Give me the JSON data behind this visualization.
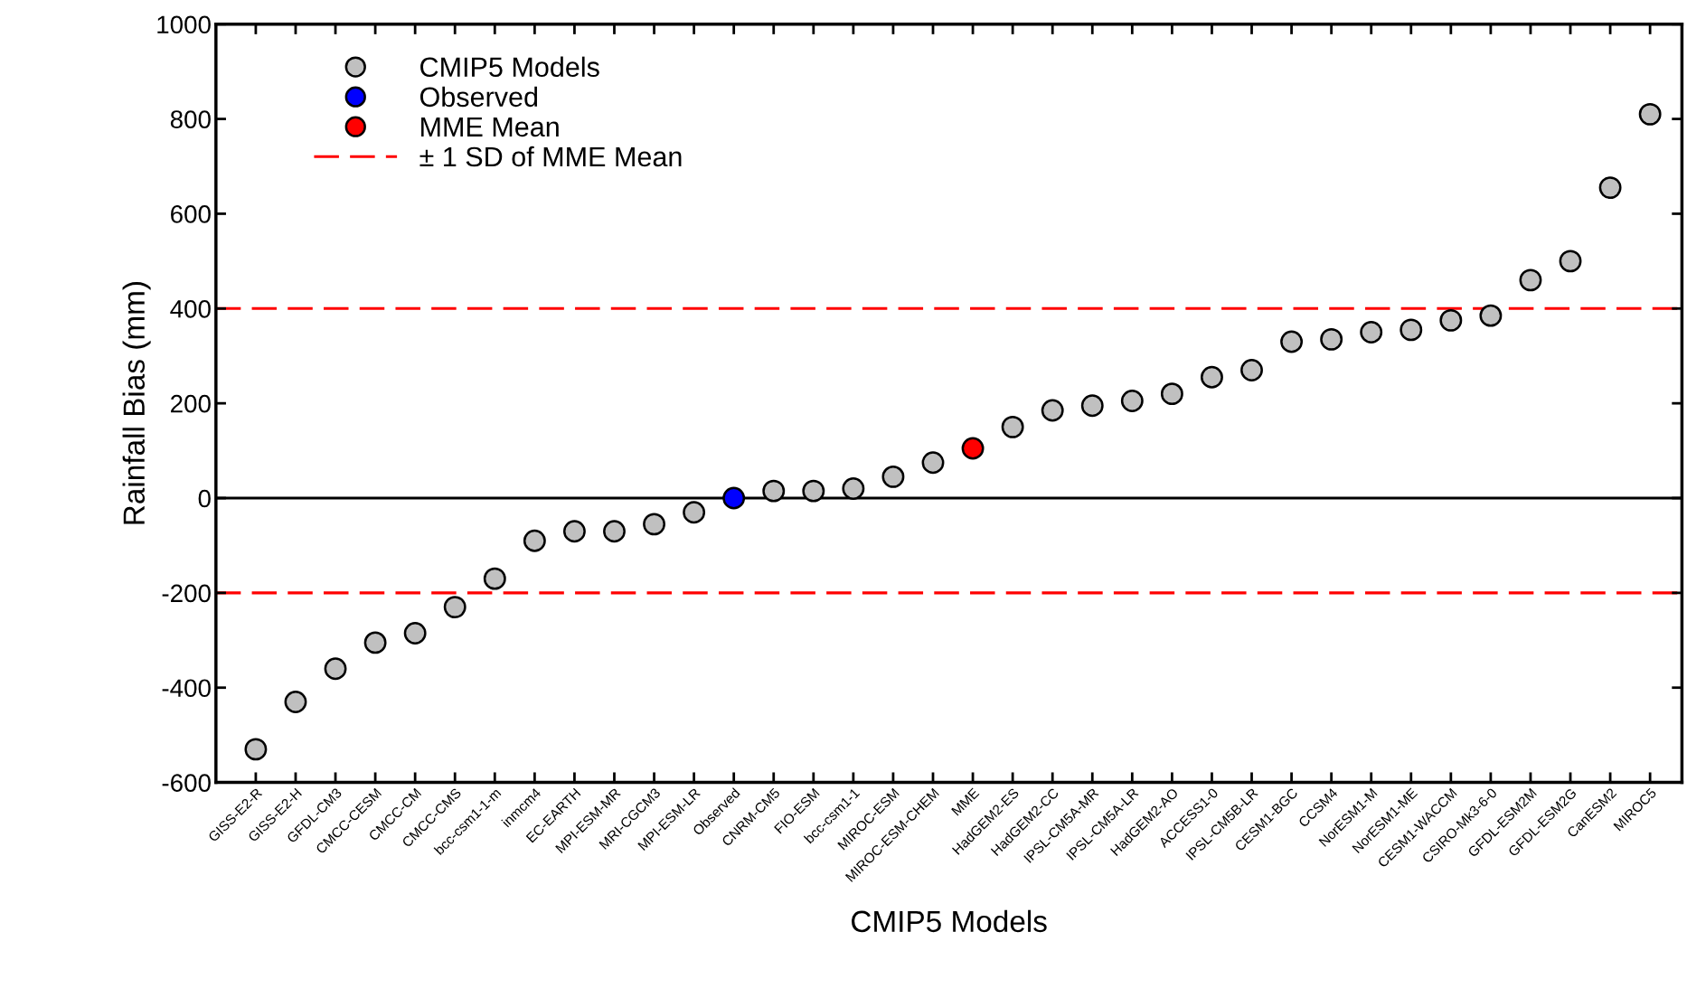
{
  "chart_data": {
    "type": "scatter",
    "xlabel": "CMIP5 Models",
    "ylabel": "Rainfall Bias (mm)",
    "categories": [
      "GISS-E2-R",
      "GISS-E2-H",
      "GFDL-CM3",
      "CMCC-CESM",
      "CMCC-CM",
      "CMCC-CMS",
      "bcc-csm1-1-m",
      "inmcm4",
      "EC-EARTH",
      "MPI-ESM-MR",
      "MRI-CGCM3",
      "MPI-ESM-LR",
      "Observed",
      "CNRM-CM5",
      "FIO-ESM",
      "bcc-csm1-1",
      "MIROC-ESM",
      "MIROC-ESM-CHEM",
      "MME",
      "HadGEM2-ES",
      "HadGEM2-CC",
      "IPSL-CM5A-MR",
      "IPSL-CM5A-LR",
      "HadGEM2-AO",
      "ACCESS1-0",
      "IPSL-CM5B-LR",
      "CESM1-BGC",
      "CCSM4",
      "NorESM1-M",
      "NorESM1-ME",
      "CESM1-WACCM",
      "CSIRO-Mk3-6-0",
      "GFDL-ESM2M",
      "GFDL-ESM2G",
      "CanESM2",
      "MIROC5"
    ],
    "series": [
      {
        "name": "CMIP5 Models",
        "color": "#c0c0c0",
        "values": [
          -530,
          -430,
          -360,
          -305,
          -285,
          -230,
          -170,
          -90,
          -70,
          -70,
          -55,
          -30,
          null,
          15,
          15,
          20,
          45,
          75,
          null,
          150,
          185,
          195,
          205,
          220,
          255,
          270,
          330,
          335,
          350,
          355,
          375,
          385,
          460,
          500,
          655,
          810
        ]
      },
      {
        "name": "Observed",
        "color": "#0000ff",
        "values": [
          null,
          null,
          null,
          null,
          null,
          null,
          null,
          null,
          null,
          null,
          null,
          null,
          0,
          null,
          null,
          null,
          null,
          null,
          null,
          null,
          null,
          null,
          null,
          null,
          null,
          null,
          null,
          null,
          null,
          null,
          null,
          null,
          null,
          null,
          null,
          null
        ]
      },
      {
        "name": "MME Mean",
        "color": "#ff0000",
        "values": [
          null,
          null,
          null,
          null,
          null,
          null,
          null,
          null,
          null,
          null,
          null,
          null,
          null,
          null,
          null,
          null,
          null,
          null,
          105,
          null,
          null,
          null,
          null,
          null,
          null,
          null,
          null,
          null,
          null,
          null,
          null,
          null,
          null,
          null,
          null,
          null
        ]
      }
    ],
    "ylim": [
      -600,
      1000
    ],
    "yticks": [
      -600,
      -400,
      -200,
      0,
      200,
      400,
      600,
      800,
      1000
    ],
    "ref_lines": [
      {
        "axis": "y",
        "value": 400,
        "label": "± 1 SD of MME Mean",
        "color": "#ff0000",
        "line_style": "dashed"
      },
      {
        "axis": "y",
        "value": -200,
        "color": "#ff0000",
        "line_style": "dashed"
      },
      {
        "axis": "y",
        "value": 0,
        "color": "#000000",
        "line_style": "solid"
      }
    ],
    "marker": "circle",
    "grid": false,
    "legend": "top left"
  }
}
